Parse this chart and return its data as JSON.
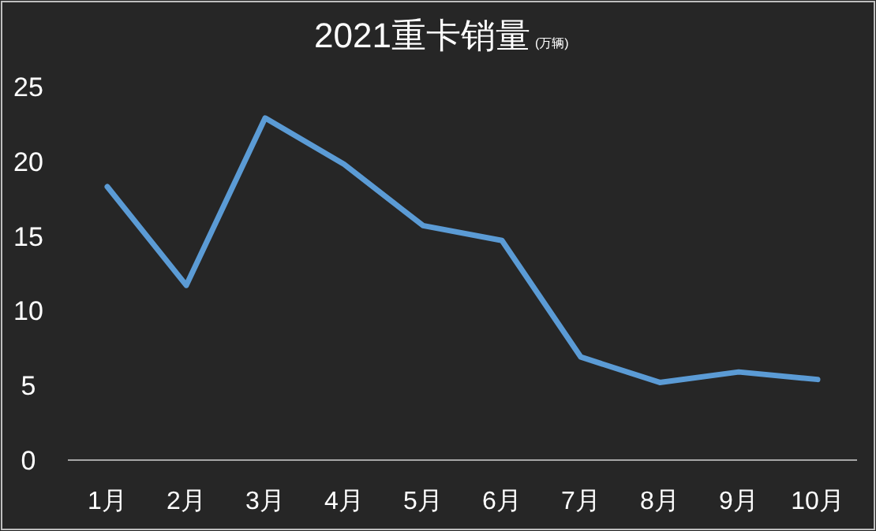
{
  "chart_data": {
    "type": "line",
    "title": "2021重卡销量",
    "subtitle": "(万辆)",
    "categories": [
      "1月",
      "2月",
      "3月",
      "4月",
      "5月",
      "6月",
      "7月",
      "8月",
      "9月",
      "10月"
    ],
    "series": [
      {
        "color": "#5b9bd5",
        "values": [
          18.3,
          11.7,
          22.9,
          19.8,
          15.7,
          14.7,
          6.9,
          5.2,
          5.9,
          5.4
        ]
      }
    ],
    "ylim": [
      0,
      25
    ],
    "yticks": [
      0,
      5,
      10,
      15,
      20,
      25
    ],
    "grid": false,
    "marker": "none",
    "line_style": "solid"
  }
}
